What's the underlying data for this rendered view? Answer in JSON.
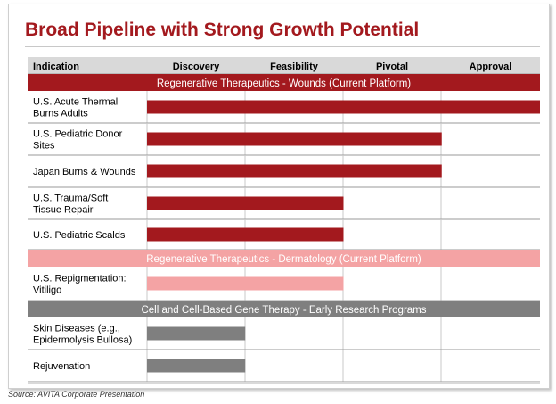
{
  "title": "Broad Pipeline with Strong Growth Potential",
  "source": "Source: AVITA Corporate Presentation",
  "colors": {
    "title": "#a3191e",
    "wounds": "#a3191e",
    "dermatology": "#f4a3a4",
    "early_research": "#7f7f7f",
    "header_bg": "#d9d9d9"
  },
  "chart_data": {
    "type": "bar",
    "orientation": "horizontal",
    "columns": [
      "Indication",
      "Discovery",
      "Feasibility",
      "Pivotal",
      "Approval"
    ],
    "stages": [
      "Discovery",
      "Feasibility",
      "Pivotal",
      "Approval"
    ],
    "xlim": [
      0,
      4
    ],
    "groups": [
      {
        "name": "Regenerative Therapeutics - Wounds (Current Platform)",
        "color": "#a3191e",
        "items": [
          {
            "label": "U.S. Acute Thermal Burns Adults",
            "progress": 4.0
          },
          {
            "label": "U.S. Pediatric Donor Sites",
            "progress": 3.0
          },
          {
            "label": "Japan Burns & Wounds",
            "progress": 3.0
          },
          {
            "label": "U.S. Trauma/Soft Tissue Repair",
            "progress": 2.0
          },
          {
            "label": "U.S. Pediatric Scalds",
            "progress": 2.0
          }
        ]
      },
      {
        "name": "Regenerative Therapeutics - Dermatology (Current Platform)",
        "color": "#f4a3a4",
        "items": [
          {
            "label": "U.S. Repigmentation: Vitiligo",
            "progress": 2.0
          }
        ]
      },
      {
        "name": "Cell and Cell-Based Gene Therapy - Early Research Programs",
        "color": "#7f7f7f",
        "items": [
          {
            "label": "Skin Diseases (e.g., Epidermolysis Bullosa)",
            "progress": 1.0
          },
          {
            "label": "Rejuvenation",
            "progress": 1.0
          }
        ]
      }
    ]
  }
}
